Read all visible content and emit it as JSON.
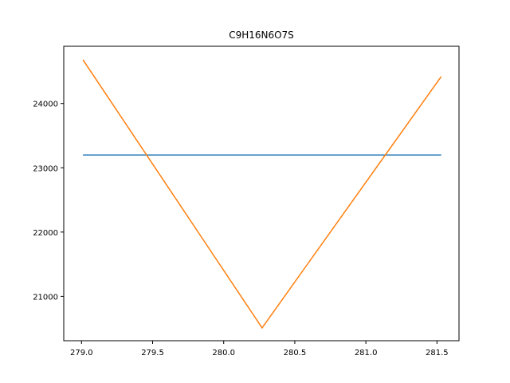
{
  "chart_data": {
    "type": "line",
    "title": "C9H16N6O7S",
    "xlabel": "",
    "ylabel": "",
    "xlim": [
      278.875,
      281.655
    ],
    "ylim": [
      20310,
      24890
    ],
    "x_ticks": [
      279.0,
      279.5,
      280.0,
      280.5,
      281.0,
      281.5
    ],
    "x_tick_labels": [
      "279.0",
      "279.5",
      "280.0",
      "280.5",
      "281.0",
      "281.5"
    ],
    "y_ticks": [
      21000,
      22000,
      23000,
      24000
    ],
    "y_tick_labels": [
      "21000",
      "22000",
      "23000",
      "24000"
    ],
    "grid": false,
    "series": [
      {
        "color": "#1f77b4",
        "x": [
          279.01,
          281.53
        ],
        "y": [
          23200,
          23200
        ]
      },
      {
        "color": "#ff7f0e",
        "x": [
          279.01,
          280.27,
          281.53
        ],
        "y": [
          24680,
          20510,
          24420
        ]
      }
    ]
  }
}
